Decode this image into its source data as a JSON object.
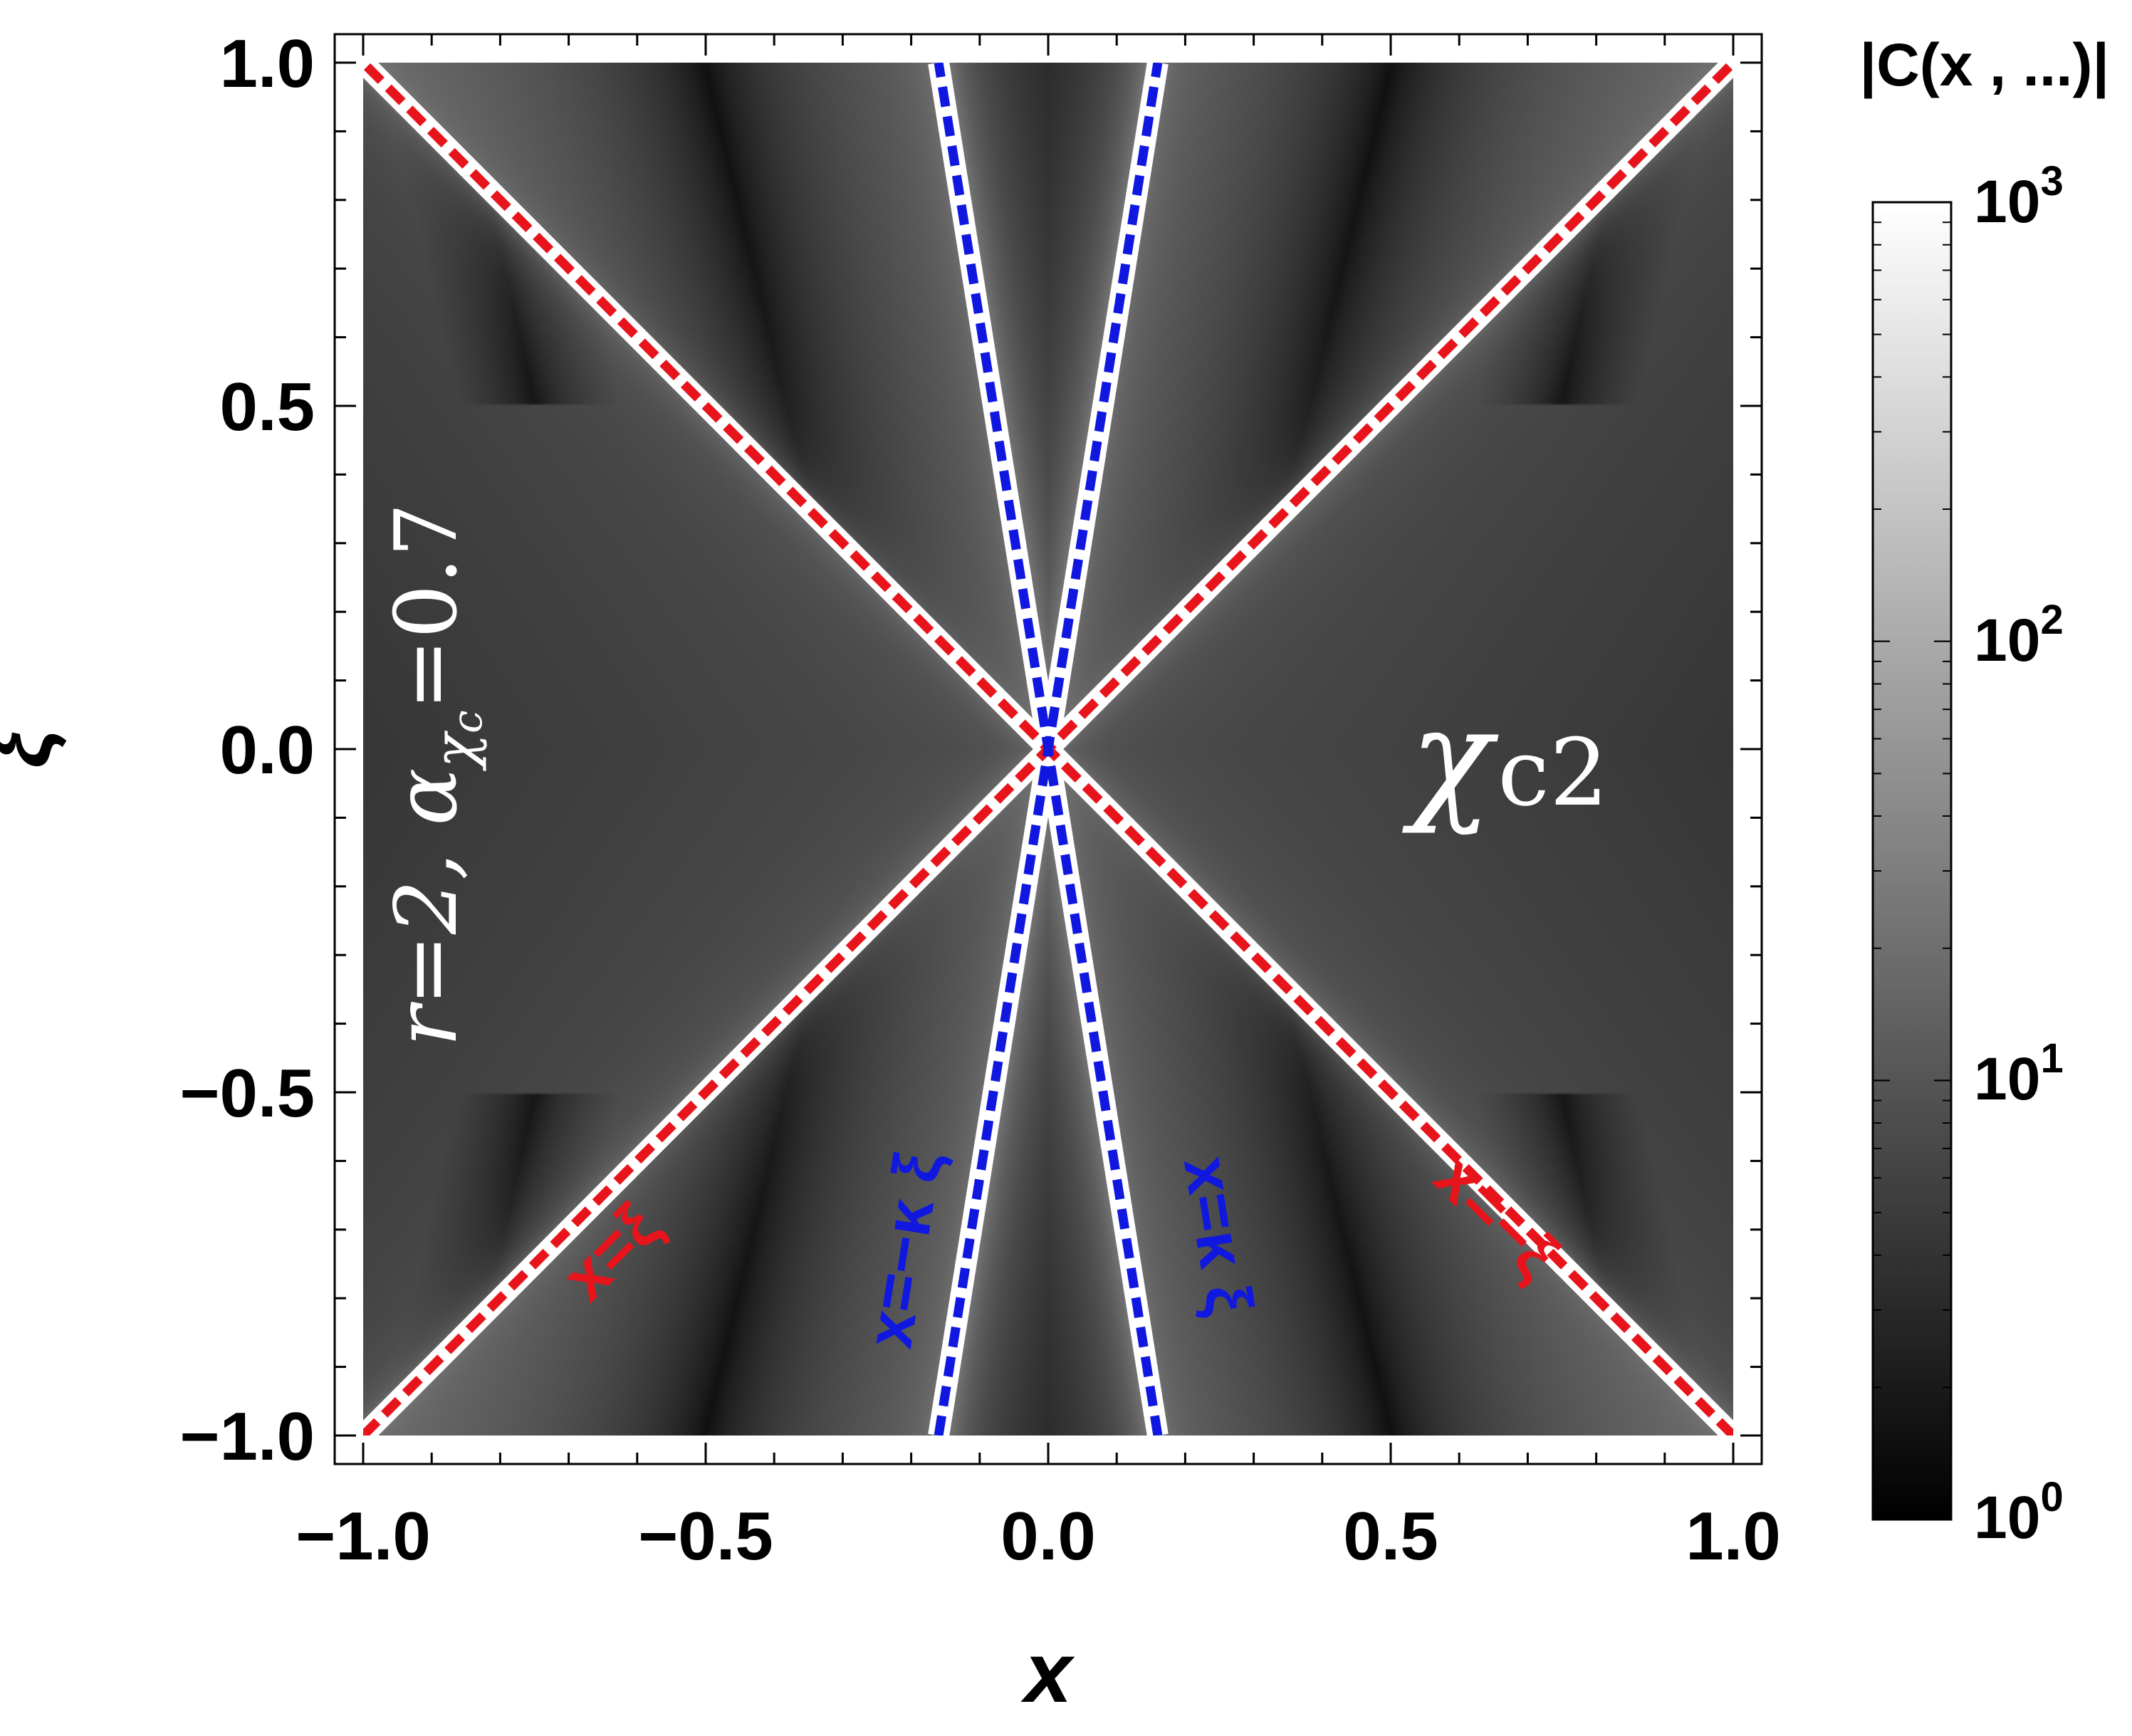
{
  "chart_data": {
    "type": "heatmap",
    "xlabel": "x",
    "ylabel": "ξ",
    "xlim": [
      -1.0,
      1.0
    ],
    "ylim": [
      -1.0,
      1.0
    ],
    "x_ticks": [
      "−1.0",
      "−0.5",
      "0.0",
      "0.5",
      "1.0"
    ],
    "y_ticks": [
      "−1.0",
      "−0.5",
      "0.0",
      "0.5",
      "1.0"
    ],
    "x_tick_values": [
      -1.0,
      -0.5,
      0.0,
      0.5,
      1.0
    ],
    "y_tick_values": [
      -1.0,
      -0.5,
      0.0,
      0.5,
      1.0
    ],
    "kappa": 0.16,
    "colorbar": {
      "title": "|C(x , ...)|",
      "scale": "log",
      "range": [
        1,
        1000
      ],
      "colormap": [
        "#000000",
        "#ffffff"
      ],
      "ticks": [
        {
          "value": 1,
          "base": "10",
          "exp": "0"
        },
        {
          "value": 10,
          "base": "10",
          "exp": "1"
        },
        {
          "value": 100,
          "base": "10",
          "exp": "2"
        },
        {
          "value": 1000,
          "base": "10",
          "exp": "3"
        }
      ]
    },
    "annotations": {
      "params_text": "r=2, α",
      "params_sub": "χ",
      "params_subsub": "c",
      "params_val": "=0.7",
      "particle_main": "χ",
      "particle_sub": "c2"
    },
    "lines": [
      {
        "label": "x=ξ",
        "slope": 1,
        "color": "#e8141c",
        "style": "dashed"
      },
      {
        "label": "x=−ξ",
        "slope": -1,
        "color": "#e8141c",
        "style": "dashed"
      },
      {
        "label": "x=−κ ξ",
        "slope": -0.16,
        "color": "#1018e0",
        "style": "dashed"
      },
      {
        "label": "x=κ ξ",
        "slope": 0.16,
        "color": "#1018e0",
        "style": "dashed"
      }
    ]
  }
}
